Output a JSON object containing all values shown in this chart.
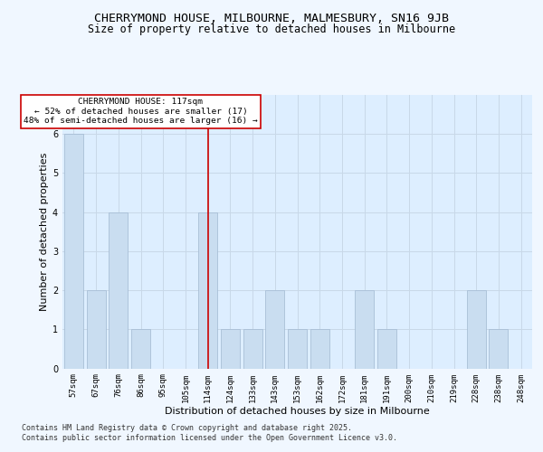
{
  "title_line1": "CHERRYMOND HOUSE, MILBOURNE, MALMESBURY, SN16 9JB",
  "title_line2": "Size of property relative to detached houses in Milbourne",
  "xlabel": "Distribution of detached houses by size in Milbourne",
  "ylabel": "Number of detached properties",
  "categories": [
    "57sqm",
    "67sqm",
    "76sqm",
    "86sqm",
    "95sqm",
    "105sqm",
    "114sqm",
    "124sqm",
    "133sqm",
    "143sqm",
    "153sqm",
    "162sqm",
    "172sqm",
    "181sqm",
    "191sqm",
    "200sqm",
    "210sqm",
    "219sqm",
    "228sqm",
    "238sqm",
    "248sqm"
  ],
  "values": [
    6,
    2,
    4,
    1,
    0,
    0,
    4,
    1,
    1,
    2,
    1,
    1,
    0,
    2,
    1,
    0,
    0,
    0,
    2,
    1,
    0
  ],
  "highlight_index": 6,
  "bar_color": "#c9ddf0",
  "bar_edge_color": "#a0b8d0",
  "highlight_line_color": "#cc0000",
  "annotation_text": "CHERRYMOND HOUSE: 117sqm\n← 52% of detached houses are smaller (17)\n48% of semi-detached houses are larger (16) →",
  "annotation_box_color": "#ffffff",
  "annotation_box_edge": "#cc0000",
  "ylim": [
    0,
    7
  ],
  "yticks": [
    0,
    1,
    2,
    3,
    4,
    5,
    6
  ],
  "grid_color": "#c8d8e8",
  "bg_color": "#ddeeff",
  "footer_line1": "Contains HM Land Registry data © Crown copyright and database right 2025.",
  "footer_line2": "Contains public sector information licensed under the Open Government Licence v3.0.",
  "title_fontsize": 9.5,
  "subtitle_fontsize": 8.5,
  "axis_label_fontsize": 8,
  "tick_fontsize": 6.5,
  "annotation_fontsize": 6.8,
  "footer_fontsize": 6
}
